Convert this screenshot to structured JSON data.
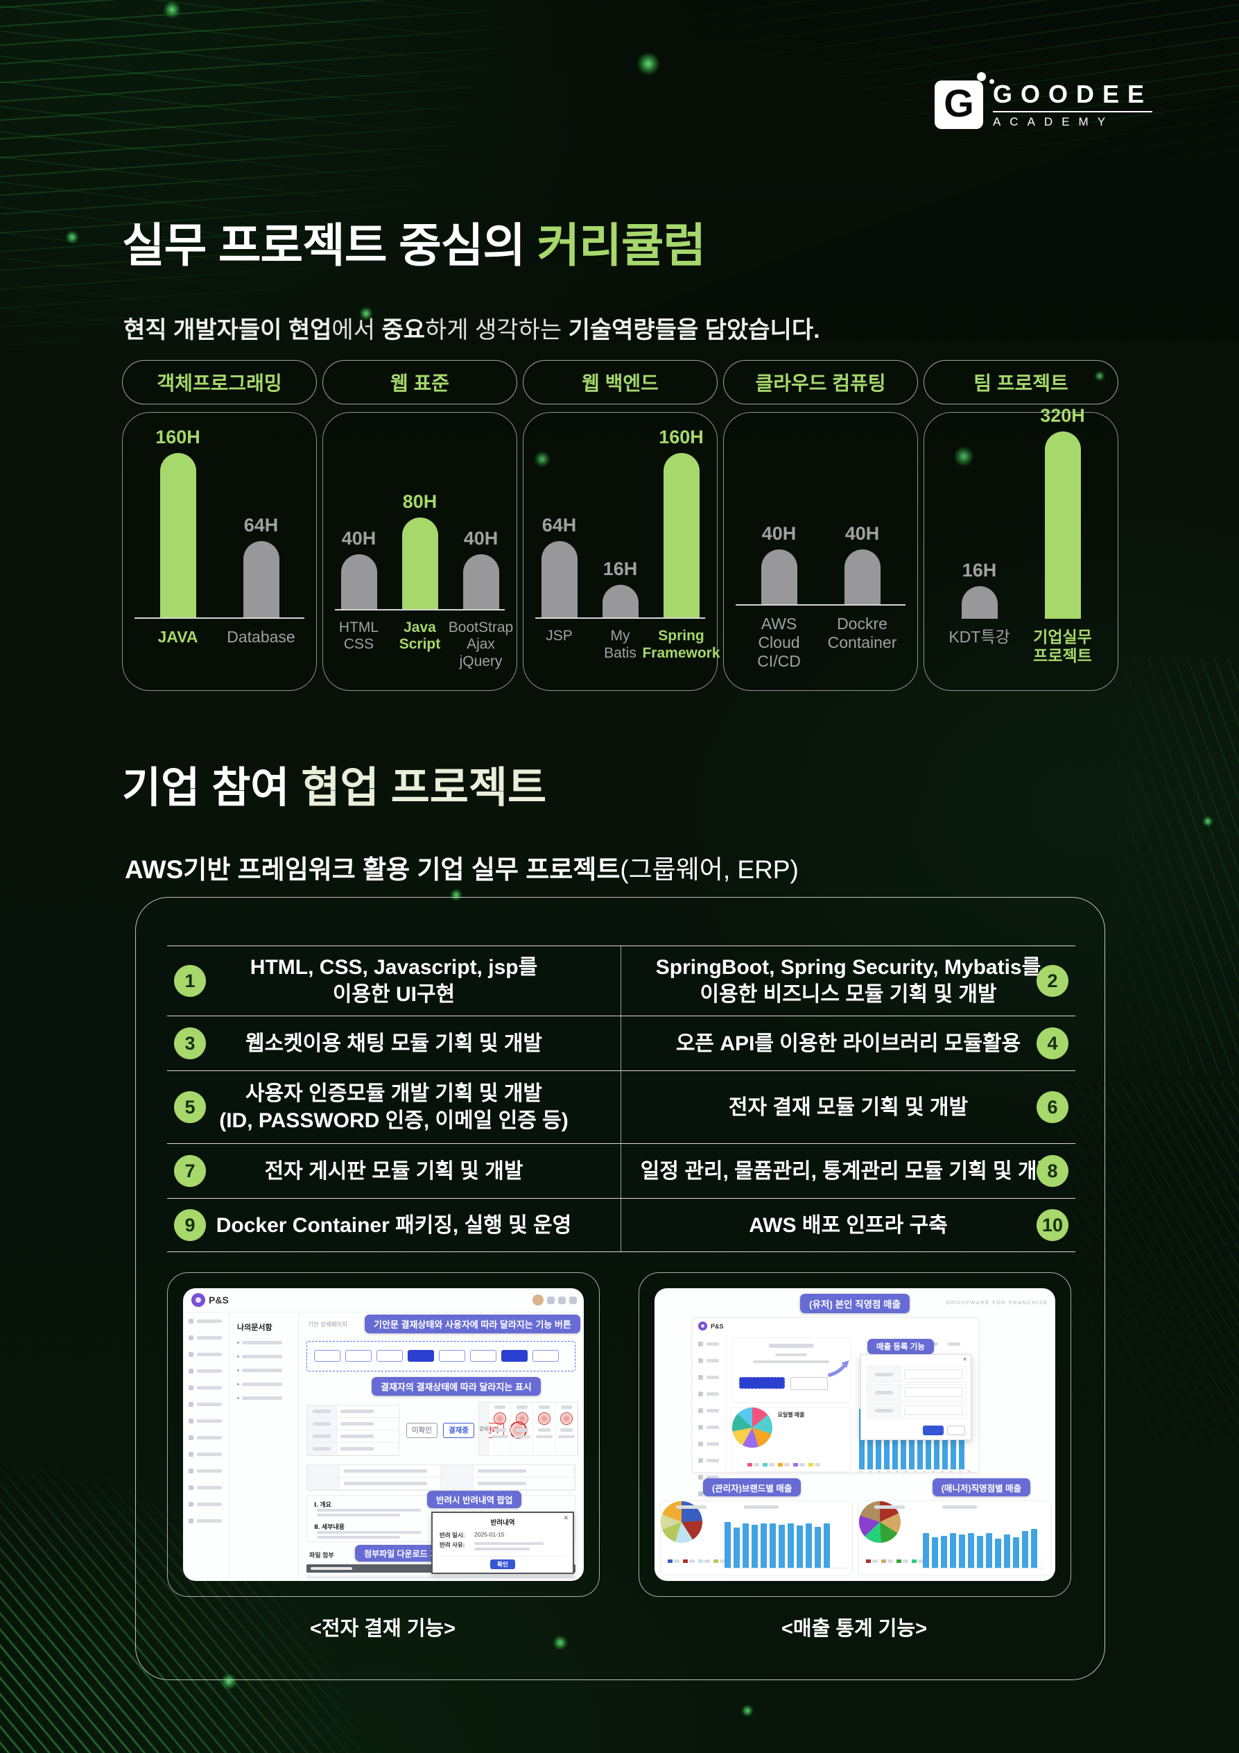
{
  "logo": {
    "glyph": "G",
    "brand": "GOODEE",
    "sub": "ACADEMY"
  },
  "hero": {
    "title_white": "실무 프로젝트 중심의 ",
    "title_green": "커리큘럼",
    "subtitle_parts": [
      {
        "t": "현직 개발자들이 ",
        "b": true
      },
      {
        "t": "현업",
        "b": true
      },
      {
        "t": "에서 ",
        "b": false
      },
      {
        "t": "중요",
        "b": true
      },
      {
        "t": "하게 생각하는 ",
        "b": false
      },
      {
        "t": "기술역량들을 담았습니다.",
        "b": true
      }
    ]
  },
  "colors": {
    "accent_green": "#a6d86c",
    "bar_gray": "#98989a",
    "callout_indigo": "#676cd4",
    "app_blue": "#41a3e3",
    "stamp_red": "#d6362e",
    "pale_green": "#e9efd9"
  },
  "curriculum": {
    "charts": [
      {
        "pill": "객체프로그래밍",
        "bars": [
          {
            "label": [
              "JAVA"
            ],
            "hours": 160,
            "value": "160H",
            "hl": true
          },
          {
            "label": [
              "Database"
            ],
            "hours": 64,
            "value": "64H",
            "hl": false
          }
        ]
      },
      {
        "pill": "웹 표준",
        "bars": [
          {
            "label": [
              "HTML",
              "CSS"
            ],
            "hours": 40,
            "value": "40H",
            "hl": false
          },
          {
            "label": [
              "Java",
              "Script"
            ],
            "hours": 80,
            "value": "80H",
            "hl": true
          },
          {
            "label": [
              "BootStrap",
              "Ajax",
              "jQuery"
            ],
            "hours": 40,
            "value": "40H",
            "hl": false
          }
        ]
      },
      {
        "pill": "웹 백엔드",
        "bars": [
          {
            "label": [
              "JSP"
            ],
            "hours": 64,
            "value": "64H",
            "hl": false
          },
          {
            "label": [
              "My",
              "Batis"
            ],
            "hours": 16,
            "value": "16H",
            "hl": false
          },
          {
            "label": [
              "Spring",
              "Framework"
            ],
            "hours": 160,
            "value": "160H",
            "hl": true
          }
        ]
      },
      {
        "pill": "클라우드 컴퓨팅",
        "bars": [
          {
            "label": [
              "AWS",
              "Cloud",
              "CI/CD"
            ],
            "hours": 40,
            "value": "40H",
            "hl": false
          },
          {
            "label": [
              "Dockre",
              "Container"
            ],
            "hours": 40,
            "value": "40H",
            "hl": false
          }
        ]
      },
      {
        "pill": "팀 프로젝트",
        "bars": [
          {
            "label": [
              "KDT특강"
            ],
            "hours": 16,
            "value": "16H",
            "hl": false
          },
          {
            "label": [
              "기업실무",
              "프로젝트"
            ],
            "hours": 320,
            "value": "320H",
            "hl": true
          }
        ]
      }
    ]
  },
  "collab": {
    "title_white": "기업 참여 ",
    "title_pale": "협업 프로젝트",
    "subtitle_bold": "AWS기반 프레임워크 활용 기업 실무 프로젝트",
    "subtitle_regular": "(그룹웨어, ERP)",
    "rows": [
      {
        "h": 100,
        "left": {
          "n": "1",
          "lines": [
            "HTML, CSS, Javascript, jsp를",
            "이용한 UI구현"
          ]
        },
        "right": {
          "n": "2",
          "lines": [
            "SpringBoot, Spring Security, Mybatis를",
            "이용한 비즈니스 모듈 기획 및 개발"
          ]
        }
      },
      {
        "h": 78,
        "left": {
          "n": "3",
          "lines": [
            "웹소켓이용 채팅 모듈 기획 및 개발"
          ]
        },
        "right": {
          "n": "4",
          "lines": [
            "오픈 API를 이용한 라이브러리 모듈활용"
          ]
        }
      },
      {
        "h": 104,
        "left": {
          "n": "5",
          "lines": [
            "사용자 인증모듈 개발 기획 및 개발",
            "(ID, PASSWORD 인증, 이메일 인증 등)"
          ]
        },
        "right": {
          "n": "6",
          "lines": [
            "전자 결재 모듈 기획 및 개발"
          ]
        }
      },
      {
        "h": 78,
        "left": {
          "n": "7",
          "lines": [
            "전자 게시판 모듈 기획 및 개발"
          ]
        },
        "right": {
          "n": "8",
          "lines": [
            "일정 관리, 물품관리, 통계관리 모듈 기획 및 개발"
          ]
        }
      },
      {
        "h": 76,
        "left": {
          "n": "9",
          "lines": [
            "Docker Container 패키징, 실행 및 운영"
          ]
        },
        "right": {
          "n": "10",
          "lines": [
            "AWS 배포 인프라 구축"
          ]
        }
      }
    ]
  },
  "shots": {
    "left": {
      "caption": "<전자 결재 기능>",
      "brand": "P&S",
      "menu_title": "나의문서함",
      "page_label": "기안 상세페이지",
      "callout_buttons": "기안문 결재상태와 사용자에 따라 달라지는 기능 버튼",
      "callout_status": "결재자의 결재상태에 따라 달라지는 표시",
      "callout_popup": "반려시 반려내역 팝업",
      "callout_download": "첨부파일 다운로드 기능",
      "status_chips": [
        "미확인",
        "결재중",
        "반려"
      ],
      "doc_sections": [
        "Ⅰ. 개요",
        "Ⅱ. 세부내용"
      ],
      "modal": {
        "title": "반려내역",
        "close": "✕",
        "row1_label": "반려 일시:",
        "row1_value": "2025-01-15",
        "row2_label": "반려 사유:",
        "ok": "확인"
      },
      "attach_label": "파일 첨부"
    },
    "right": {
      "caption": "<매출 통계 기능>",
      "brand": "P&S",
      "watermark": "GROUPWARE FOR FRANCHISE",
      "callout_top": "(유저) 본인 직영점 매출",
      "callout_register": "매출 등록 기능",
      "callout_admin": "(관리자)브랜드별 매출",
      "callout_manager": "(매니저)직영점별 매출",
      "modal_close": "✕",
      "pie_top": {
        "title": "요일별 매출",
        "slices": [
          {
            "c": "#f2547d",
            "v": 14
          },
          {
            "c": "#53cfd2",
            "v": 16
          },
          {
            "c": "#f5a623",
            "v": 15
          },
          {
            "c": "#9b6bf2",
            "v": 13
          },
          {
            "c": "#f8cf4a",
            "v": 14
          },
          {
            "c": "#35b99e",
            "v": 15
          },
          {
            "c": "#57c8ef",
            "v": 13
          }
        ]
      },
      "bars_top": [
        0.55,
        0.55,
        0.55,
        0.55,
        0.55,
        0.55,
        0.55,
        0.55,
        0.56,
        0.55,
        0.55,
        0.6,
        0.95
      ],
      "pie_admin": {
        "slices": [
          {
            "c": "#3b5fc0",
            "v": 24
          },
          {
            "c": "#a93226",
            "v": 17
          },
          {
            "c": "#bfe3f2",
            "v": 14
          },
          {
            "c": "#b5c95f",
            "v": 14
          },
          {
            "c": "#d8da9e",
            "v": 12
          },
          {
            "c": "#efac2f",
            "v": 19
          }
        ]
      },
      "bars_admin": [
        0.82,
        0.72,
        0.8,
        0.78,
        0.8,
        0.8,
        0.78,
        0.8,
        0.76,
        0.8,
        0.74,
        0.8
      ],
      "pie_manager": {
        "slices": [
          {
            "c": "#a93226",
            "v": 18
          },
          {
            "c": "#d3a964",
            "v": 16
          },
          {
            "c": "#35a435",
            "v": 15
          },
          {
            "c": "#27d07c",
            "v": 14
          },
          {
            "c": "#8a3fd0",
            "v": 17
          },
          {
            "c": "#b08d5f",
            "v": 20
          }
        ]
      },
      "bars_manager": [
        0.62,
        0.55,
        0.58,
        0.62,
        0.6,
        0.62,
        0.58,
        0.62,
        0.52,
        0.6,
        0.55,
        0.66,
        0.7
      ]
    }
  },
  "chart_data": [
    {
      "type": "bar",
      "title": "객체프로그래밍",
      "categories": [
        "JAVA",
        "Database"
      ],
      "values": [
        160,
        64
      ],
      "unit": "H",
      "highlight": "JAVA"
    },
    {
      "type": "bar",
      "title": "웹 표준",
      "categories": [
        "HTML CSS",
        "Java Script",
        "BootStrap Ajax jQuery"
      ],
      "values": [
        40,
        80,
        40
      ],
      "unit": "H",
      "highlight": "Java Script"
    },
    {
      "type": "bar",
      "title": "웹 백엔드",
      "categories": [
        "JSP",
        "My Batis",
        "Spring Framework"
      ],
      "values": [
        64,
        16,
        160
      ],
      "unit": "H",
      "highlight": "Spring Framework"
    },
    {
      "type": "bar",
      "title": "클라우드 컴퓨팅",
      "categories": [
        "AWS Cloud CI/CD",
        "Dockre Container"
      ],
      "values": [
        40,
        40
      ],
      "unit": "H",
      "highlight": null
    },
    {
      "type": "bar",
      "title": "팀 프로젝트",
      "categories": [
        "KDT특강",
        "기업실무 프로젝트"
      ],
      "values": [
        16,
        320
      ],
      "unit": "H",
      "highlight": "기업실무 프로젝트"
    }
  ]
}
